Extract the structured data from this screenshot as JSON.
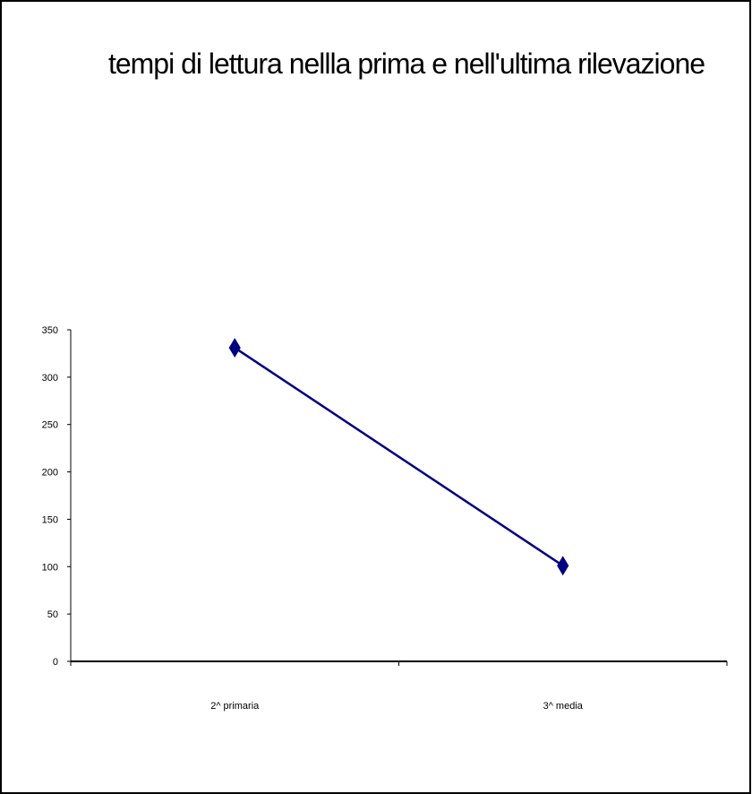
{
  "chart_data": {
    "type": "line",
    "title": "tempi di lettura nellla  prima e nell'ultima rilevazione",
    "xlabel": "",
    "ylabel": "",
    "categories": [
      "2^ primaria",
      "3^ media"
    ],
    "series": [
      {
        "values": [
          331,
          101
        ],
        "color": "#000080",
        "marker": "diamond"
      }
    ],
    "ylim": [
      0,
      350
    ],
    "yticks": [
      0,
      50,
      100,
      150,
      200,
      250,
      300,
      350
    ],
    "grid": false,
    "legend": "none"
  }
}
